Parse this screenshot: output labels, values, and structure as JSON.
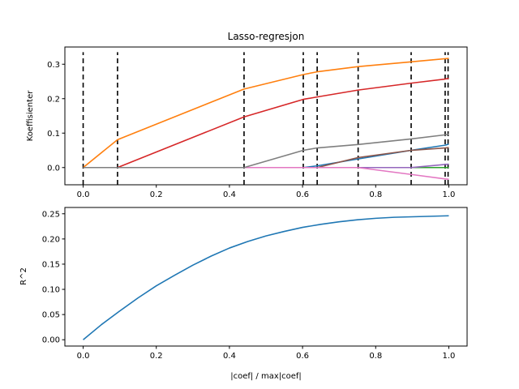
{
  "chart_data": [
    {
      "type": "line",
      "title": "Lasso-regresjon",
      "xlabel": "",
      "ylabel": "Koeffisienter",
      "xlim": [
        -0.05,
        1.05
      ],
      "ylim": [
        -0.05,
        0.35
      ],
      "xticks": [
        0.0,
        0.2,
        0.4,
        0.6,
        0.8,
        1.0
      ],
      "xtick_labels": [
        "0.0",
        "0.2",
        "0.4",
        "0.6",
        "0.8",
        "1.0"
      ],
      "yticks": [
        0.0,
        0.1,
        0.2,
        0.3
      ],
      "ytick_labels": [
        "0.0",
        "0.1",
        "0.2",
        "0.3"
      ],
      "vlines": [
        0.0,
        0.094,
        0.44,
        0.602,
        0.64,
        0.752,
        0.897,
        0.99,
        0.998
      ],
      "vline_range": [
        -0.05,
        0.335
      ],
      "series": [
        {
          "color": "#1f77b4",
          "x": [
            0.0,
            0.602,
            0.64,
            0.752,
            0.897,
            0.99,
            1.0
          ],
          "y": [
            0.0,
            0.0,
            0.005,
            0.025,
            0.05,
            0.065,
            0.068
          ]
        },
        {
          "color": "#ff7f0e",
          "x": [
            0.0,
            0.094,
            0.44,
            0.602,
            0.64,
            0.752,
            0.897,
            0.99,
            1.0
          ],
          "y": [
            0.0,
            0.081,
            0.228,
            0.27,
            0.278,
            0.293,
            0.307,
            0.316,
            0.317
          ]
        },
        {
          "color": "#2ca02c",
          "x": [
            0.0,
            1.0
          ],
          "y": [
            0.0,
            0.0
          ]
        },
        {
          "color": "#d62728",
          "x": [
            0.0,
            0.094,
            0.44,
            0.602,
            0.64,
            0.752,
            0.897,
            0.99,
            1.0
          ],
          "y": [
            0.0,
            0.0,
            0.147,
            0.198,
            0.205,
            0.225,
            0.245,
            0.257,
            0.259
          ]
        },
        {
          "color": "#9467bd",
          "x": [
            0.0,
            0.897,
            0.99,
            1.0
          ],
          "y": [
            0.0,
            0.0,
            0.009,
            0.01
          ]
        },
        {
          "color": "#8c564b",
          "x": [
            0.0,
            0.64,
            0.752,
            0.897,
            0.99,
            1.0
          ],
          "y": [
            0.0,
            0.0,
            0.029,
            0.05,
            0.057,
            0.058
          ]
        },
        {
          "color": "#e377c2",
          "x": [
            0.0,
            0.752,
            0.897,
            0.99,
            1.0
          ],
          "y": [
            0.0,
            0.0,
            -0.02,
            -0.033,
            -0.034
          ]
        },
        {
          "color": "#7f7f7f",
          "x": [
            0.0,
            0.44,
            0.602,
            0.64,
            0.752,
            0.897,
            0.99,
            1.0
          ],
          "y": [
            0.0,
            0.0,
            0.05,
            0.057,
            0.067,
            0.083,
            0.095,
            0.097
          ]
        }
      ]
    },
    {
      "type": "line",
      "title": "",
      "xlabel": "|coef| / max|coef|",
      "ylabel": "R^2",
      "xlim": [
        -0.05,
        1.05
      ],
      "ylim": [
        -0.0125,
        0.2625
      ],
      "xticks": [
        0.0,
        0.2,
        0.4,
        0.6,
        0.8,
        1.0
      ],
      "xtick_labels": [
        "0.0",
        "0.2",
        "0.4",
        "0.6",
        "0.8",
        "1.0"
      ],
      "yticks": [
        0.0,
        0.05,
        0.1,
        0.15,
        0.2,
        0.25
      ],
      "ytick_labels": [
        "0.00",
        "0.05",
        "0.10",
        "0.15",
        "0.20",
        "0.25"
      ],
      "series": [
        {
          "color": "#1f77b4",
          "x": [
            0.0,
            0.05,
            0.1,
            0.15,
            0.2,
            0.25,
            0.3,
            0.35,
            0.4,
            0.45,
            0.5,
            0.55,
            0.6,
            0.65,
            0.7,
            0.75,
            0.8,
            0.85,
            0.9,
            0.95,
            1.0
          ],
          "y": [
            0.0,
            0.03,
            0.057,
            0.083,
            0.107,
            0.128,
            0.148,
            0.166,
            0.182,
            0.195,
            0.206,
            0.215,
            0.223,
            0.229,
            0.234,
            0.238,
            0.241,
            0.243,
            0.244,
            0.245,
            0.246
          ]
        }
      ]
    }
  ]
}
